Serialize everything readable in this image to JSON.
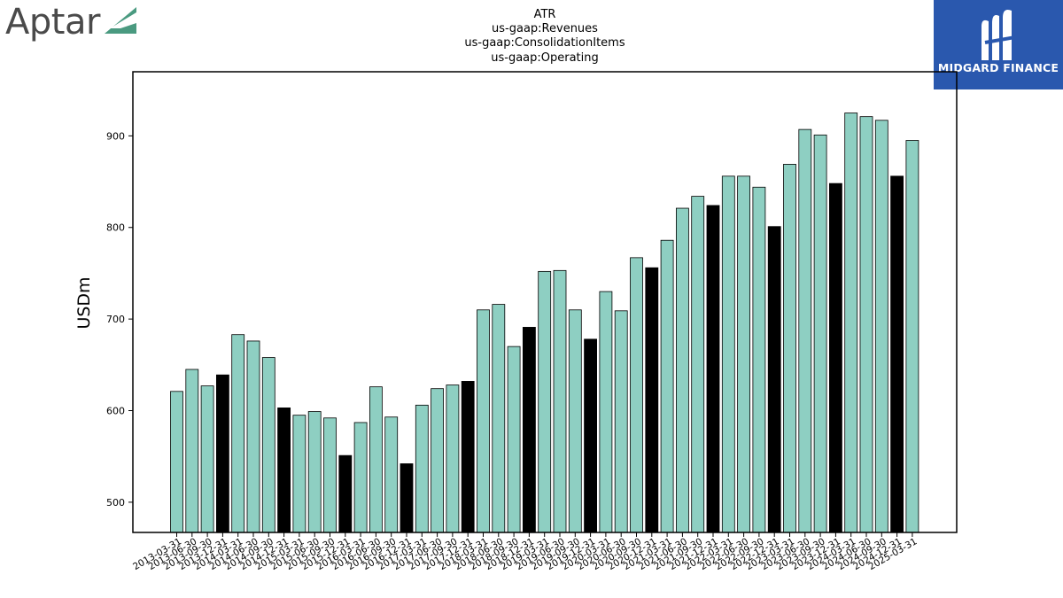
{
  "logos": {
    "left": {
      "text": "Aptar",
      "color": "#4a4a4a",
      "accent": "#4a9a80"
    },
    "right": {
      "text": "MIDGARD FINANCE",
      "background": "#2a58ae"
    }
  },
  "chart_data": {
    "type": "bar",
    "title_lines": [
      "ATR",
      "us-gaap:Revenues",
      "us-gaap:ConsolidationItems",
      "us-gaap:Operating"
    ],
    "xlabel": "",
    "ylabel": "USDm",
    "ylim": [
      467,
      970
    ],
    "yticks": [
      500,
      600,
      700,
      800,
      900
    ],
    "grid": false,
    "legend": "none",
    "colors": {
      "quarter": "#8ecfc2",
      "year_end": "#000000",
      "edge": "#000000"
    },
    "categories": [
      "2013-03-31",
      "2013-06-30",
      "2013-09-30",
      "2013-12-31",
      "2014-03-31",
      "2014-06-30",
      "2014-09-30",
      "2014-12-31",
      "2015-03-31",
      "2015-06-30",
      "2015-09-30",
      "2015-12-31",
      "2016-03-31",
      "2016-06-30",
      "2016-09-30",
      "2016-12-31",
      "2017-03-31",
      "2017-06-30",
      "2017-09-30",
      "2017-12-31",
      "2018-03-31",
      "2018-06-30",
      "2018-09-30",
      "2018-12-31",
      "2019-03-31",
      "2019-06-30",
      "2019-09-30",
      "2019-12-31",
      "2020-03-31",
      "2020-06-30",
      "2020-09-30",
      "2020-12-31",
      "2021-03-31",
      "2021-06-30",
      "2021-09-30",
      "2021-12-31",
      "2022-03-31",
      "2022-06-30",
      "2022-09-30",
      "2022-12-31",
      "2023-03-31",
      "2023-06-30",
      "2023-09-30",
      "2023-12-31",
      "2024-03-31",
      "2024-06-30",
      "2024-09-30",
      "2024-12-31",
      "2025-03-31"
    ],
    "values": [
      621,
      645,
      627,
      639,
      683,
      676,
      658,
      603,
      595,
      599,
      592,
      551,
      587,
      626,
      593,
      542,
      606,
      624,
      628,
      632,
      710,
      716,
      670,
      691,
      752,
      753,
      710,
      678,
      730,
      709,
      767,
      756,
      786,
      821,
      834,
      824,
      856,
      856,
      844,
      801,
      869,
      907,
      901,
      848,
      925,
      921,
      917,
      856,
      895
    ]
  }
}
